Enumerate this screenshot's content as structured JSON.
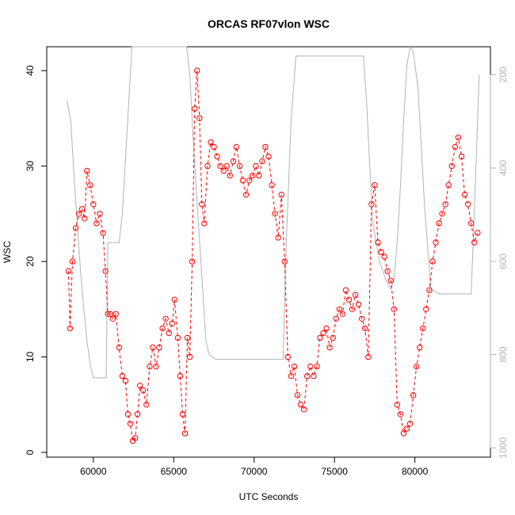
{
  "chart_data": {
    "type": "scatter",
    "title": "ORCAS RF07vlon WSC",
    "xlabel": "UTC Seconds",
    "ylabel": "WSC",
    "xlim": [
      57100,
      84700
    ],
    "ylim": [
      -0.5,
      42.5
    ],
    "x_ticks": [
      60000,
      65000,
      70000,
      75000,
      80000
    ],
    "x_tick_labels": [
      "60000",
      "65000",
      "70000",
      "75000",
      "80000"
    ],
    "y_ticks": [
      0,
      10,
      20,
      30,
      40
    ],
    "y_tick_labels": [
      "0",
      "10",
      "20",
      "30",
      "40"
    ],
    "y2_ticks": [
      200,
      400,
      600,
      800,
      1000
    ],
    "y2_tick_labels": [
      "200",
      "400",
      "600",
      "800",
      "1000"
    ],
    "y2_lim": [
      1020,
      140
    ],
    "grid": false,
    "series": [
      {
        "name": "",
        "kind": "points-with-dashed-line",
        "color": "#ff0000",
        "x": [
          58450,
          58550,
          58700,
          58900,
          59100,
          59300,
          59450,
          59600,
          59800,
          60000,
          60200,
          60400,
          60600,
          60750,
          60900,
          61050,
          61200,
          61400,
          61600,
          61800,
          62000,
          62150,
          62300,
          62450,
          62600,
          62750,
          62900,
          63100,
          63300,
          63500,
          63700,
          63900,
          64100,
          64300,
          64500,
          64700,
          64900,
          65050,
          65250,
          65400,
          65550,
          65700,
          65850,
          66000,
          66150,
          66300,
          66450,
          66600,
          66750,
          66900,
          67100,
          67300,
          67500,
          67700,
          67900,
          68100,
          68300,
          68500,
          68700,
          68900,
          69100,
          69300,
          69500,
          69700,
          69900,
          70100,
          70300,
          70500,
          70700,
          70900,
          71100,
          71300,
          71500,
          71700,
          71900,
          72100,
          72300,
          72500,
          72700,
          72900,
          73100,
          73300,
          73500,
          73700,
          73900,
          74100,
          74300,
          74500,
          74700,
          74900,
          75100,
          75300,
          75500,
          75700,
          75900,
          76100,
          76300,
          76500,
          76700,
          76900,
          77100,
          77300,
          77500,
          77700,
          77900,
          78100,
          78300,
          78500,
          78700,
          78900,
          79100,
          79300,
          79500,
          79700,
          79900,
          80100,
          80300,
          80500,
          80700,
          80900,
          81100,
          81300,
          81500,
          81700,
          81900,
          82100,
          82300,
          82500,
          82700,
          82900,
          83100,
          83300,
          83500,
          83700,
          83900
        ],
        "y": [
          19,
          13,
          20,
          23.5,
          25,
          25.5,
          24.5,
          29.5,
          28,
          26,
          24,
          25,
          23,
          19,
          14.5,
          14.5,
          14,
          14.5,
          11,
          8,
          7.5,
          4,
          3,
          1.2,
          1.5,
          4,
          7,
          6.5,
          5,
          9,
          11,
          9,
          11,
          13,
          14,
          12.5,
          13.5,
          16,
          12,
          8,
          4,
          2,
          12,
          10,
          20,
          36,
          40,
          35,
          26,
          24,
          30,
          32.5,
          32,
          31,
          30,
          29.5,
          30,
          29,
          30.5,
          32,
          30,
          28.5,
          27,
          28.5,
          29,
          30,
          29,
          30.5,
          32,
          31,
          28,
          25,
          22.5,
          27,
          20,
          10,
          8,
          9,
          6,
          5,
          4.5,
          8,
          9,
          8,
          9,
          12,
          12.5,
          13,
          11,
          12,
          14,
          15,
          14.5,
          17,
          16,
          15,
          16.5,
          15.5,
          14,
          13,
          10,
          26,
          28,
          22,
          21,
          20.5,
          19,
          18,
          15,
          5,
          4,
          2,
          2.5,
          3,
          6,
          9,
          11,
          13,
          15,
          17,
          20,
          22,
          24,
          25,
          26,
          28,
          30,
          32,
          33,
          31,
          27,
          26,
          24,
          22,
          23
        ]
      },
      {
        "name": "",
        "kind": "line",
        "color": "#b3b3b3",
        "axis": "right",
        "x": [
          58350,
          58600,
          58800,
          59000,
          59200,
          59400,
          59600,
          59800,
          60000,
          60200,
          60400,
          60600,
          60800,
          60900,
          61200,
          61400,
          61600,
          61800,
          62000,
          62200,
          62400,
          62600,
          62800,
          63100,
          63400,
          64000,
          65000,
          65400,
          65600,
          65800,
          66000,
          66200,
          66500,
          66800,
          67000,
          67200,
          67600,
          68500,
          70000,
          71000,
          71800,
          72000,
          72300,
          72600,
          73000,
          73500,
          74000,
          75000,
          76000,
          76500,
          76800,
          77000,
          77200,
          77400,
          77800,
          78200,
          78500,
          78700,
          78900,
          79100,
          79300,
          79500,
          79700,
          79900,
          80200,
          80600,
          81000,
          81500,
          82000,
          82500,
          83000,
          83500,
          83800,
          84000
        ],
        "y": [
          255,
          300,
          420,
          520,
          620,
          700,
          770,
          820,
          850,
          850,
          850,
          850,
          850,
          560,
          560,
          560,
          560,
          500,
          380,
          260,
          140,
          140,
          140,
          140,
          140,
          140,
          140,
          140,
          140,
          140,
          200,
          330,
          500,
          660,
          770,
          800,
          810,
          810,
          810,
          810,
          810,
          560,
          300,
          160,
          160,
          160,
          160,
          160,
          160,
          160,
          160,
          260,
          400,
          520,
          600,
          640,
          660,
          640,
          560,
          440,
          300,
          180,
          140,
          150,
          230,
          480,
          660,
          670,
          670,
          670,
          670,
          670,
          400,
          200
        ]
      }
    ]
  }
}
